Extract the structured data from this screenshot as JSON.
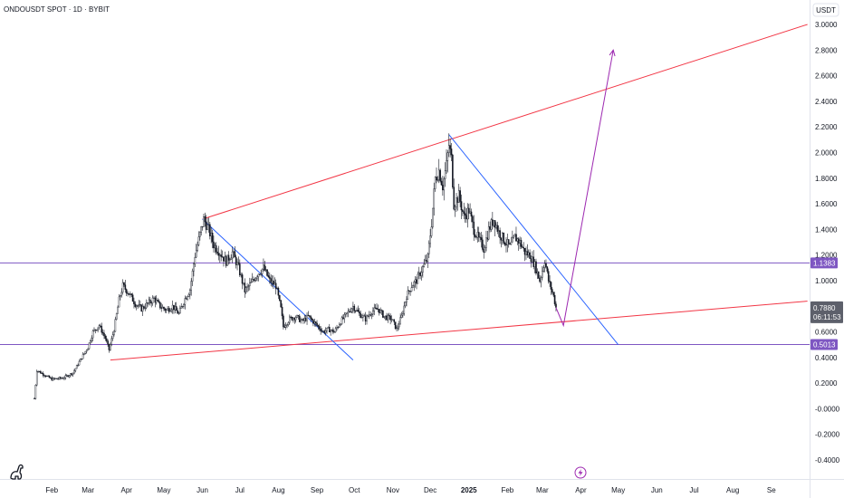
{
  "header": {
    "title": "ONDOUSDT SPOT · 1D · BYBIT"
  },
  "axis": {
    "unit": "USDT"
  },
  "chart_data": {
    "type": "line",
    "title": "ONDOUSDT SPOT · 1D · BYBIT",
    "ylabel": "USDT",
    "ylim": [
      -0.46,
      3.1
    ],
    "xlim": [
      "2024-01-18",
      "2025-10-01"
    ],
    "y_ticks": [
      {
        "value": 3.0,
        "label": "3.0000"
      },
      {
        "value": 2.8,
        "label": "2.8000"
      },
      {
        "value": 2.6,
        "label": "2.6000"
      },
      {
        "value": 2.4,
        "label": "2.4000"
      },
      {
        "value": 2.2,
        "label": "2.2000"
      },
      {
        "value": 2.0,
        "label": "2.0000"
      },
      {
        "value": 1.8,
        "label": "1.8000"
      },
      {
        "value": 1.6,
        "label": "1.6000"
      },
      {
        "value": 1.4,
        "label": "1.4000"
      },
      {
        "value": 1.2,
        "label": "1.2000"
      },
      {
        "value": 1.0,
        "label": "1.0000"
      },
      {
        "value": 0.8,
        "label": "0.8000"
      },
      {
        "value": 0.6,
        "label": "0.6000"
      },
      {
        "value": 0.4,
        "label": "0.4000"
      },
      {
        "value": 0.2,
        "label": "0.2000"
      },
      {
        "value": 0.0,
        "label": "-0.0000"
      },
      {
        "value": -0.2,
        "label": "-0.2000"
      },
      {
        "value": -0.4,
        "label": "-0.4000"
      }
    ],
    "x_ticks": [
      {
        "date": "2024-02-01",
        "label": "Feb"
      },
      {
        "date": "2024-03-01",
        "label": "Mar"
      },
      {
        "date": "2024-04-01",
        "label": "Apr"
      },
      {
        "date": "2024-05-01",
        "label": "May"
      },
      {
        "date": "2024-06-01",
        "label": "Jun"
      },
      {
        "date": "2024-07-01",
        "label": "Jul"
      },
      {
        "date": "2024-08-01",
        "label": "Aug"
      },
      {
        "date": "2024-09-01",
        "label": "Sep"
      },
      {
        "date": "2024-10-01",
        "label": "Oct"
      },
      {
        "date": "2024-11-01",
        "label": "Nov"
      },
      {
        "date": "2024-12-01",
        "label": "Dec"
      },
      {
        "date": "2025-01-01",
        "label": "2025"
      },
      {
        "date": "2025-02-01",
        "label": "Feb"
      },
      {
        "date": "2025-03-01",
        "label": "Mar"
      },
      {
        "date": "2025-04-01",
        "label": "Apr"
      },
      {
        "date": "2025-05-01",
        "label": "May"
      },
      {
        "date": "2025-06-01",
        "label": "Jun"
      },
      {
        "date": "2025-07-01",
        "label": "Jul"
      },
      {
        "date": "2025-08-01",
        "label": "Aug"
      },
      {
        "date": "2025-09-01",
        "label": "Se"
      }
    ],
    "series": [
      {
        "color": "#131722",
        "points": [
          [
            "2024-01-18",
            0.08
          ],
          [
            "2024-01-20",
            0.3
          ],
          [
            "2024-01-25",
            0.27
          ],
          [
            "2024-02-01",
            0.23
          ],
          [
            "2024-02-10",
            0.24
          ],
          [
            "2024-02-18",
            0.28
          ],
          [
            "2024-02-25",
            0.4
          ],
          [
            "2024-03-01",
            0.48
          ],
          [
            "2024-03-05",
            0.6
          ],
          [
            "2024-03-10",
            0.65
          ],
          [
            "2024-03-15",
            0.55
          ],
          [
            "2024-03-18",
            0.46
          ],
          [
            "2024-03-22",
            0.62
          ],
          [
            "2024-03-26",
            0.85
          ],
          [
            "2024-03-29",
            0.96
          ],
          [
            "2024-04-03",
            0.9
          ],
          [
            "2024-04-08",
            0.82
          ],
          [
            "2024-04-13",
            0.78
          ],
          [
            "2024-04-18",
            0.82
          ],
          [
            "2024-04-23",
            0.86
          ],
          [
            "2024-04-28",
            0.8
          ],
          [
            "2024-05-03",
            0.77
          ],
          [
            "2024-05-08",
            0.8
          ],
          [
            "2024-05-13",
            0.74
          ],
          [
            "2024-05-18",
            0.86
          ],
          [
            "2024-05-22",
            0.93
          ],
          [
            "2024-05-26",
            1.2
          ],
          [
            "2024-05-30",
            1.36
          ],
          [
            "2024-06-02",
            1.48
          ],
          [
            "2024-06-06",
            1.4
          ],
          [
            "2024-06-10",
            1.28
          ],
          [
            "2024-06-15",
            1.22
          ],
          [
            "2024-06-20",
            1.15
          ],
          [
            "2024-06-25",
            1.22
          ],
          [
            "2024-06-30",
            1.1
          ],
          [
            "2024-07-05",
            0.92
          ],
          [
            "2024-07-10",
            0.98
          ],
          [
            "2024-07-15",
            1.05
          ],
          [
            "2024-07-20",
            1.1
          ],
          [
            "2024-07-25",
            1.0
          ],
          [
            "2024-07-30",
            0.96
          ],
          [
            "2024-08-03",
            0.78
          ],
          [
            "2024-08-05",
            0.64
          ],
          [
            "2024-08-10",
            0.7
          ],
          [
            "2024-08-15",
            0.72
          ],
          [
            "2024-08-20",
            0.68
          ],
          [
            "2024-08-25",
            0.72
          ],
          [
            "2024-08-31",
            0.66
          ],
          [
            "2024-09-06",
            0.6
          ],
          [
            "2024-09-10",
            0.62
          ],
          [
            "2024-09-15",
            0.6
          ],
          [
            "2024-09-20",
            0.68
          ],
          [
            "2024-09-25",
            0.74
          ],
          [
            "2024-09-30",
            0.8
          ],
          [
            "2024-10-05",
            0.74
          ],
          [
            "2024-10-10",
            0.7
          ],
          [
            "2024-10-15",
            0.76
          ],
          [
            "2024-10-20",
            0.78
          ],
          [
            "2024-10-25",
            0.72
          ],
          [
            "2024-10-31",
            0.7
          ],
          [
            "2024-11-04",
            0.62
          ],
          [
            "2024-11-08",
            0.72
          ],
          [
            "2024-11-12",
            0.88
          ],
          [
            "2024-11-16",
            0.96
          ],
          [
            "2024-11-20",
            1.0
          ],
          [
            "2024-11-25",
            1.1
          ],
          [
            "2024-11-29",
            1.18
          ],
          [
            "2024-12-02",
            1.45
          ],
          [
            "2024-12-05",
            1.8
          ],
          [
            "2024-12-08",
            1.86
          ],
          [
            "2024-12-11",
            1.74
          ],
          [
            "2024-12-14",
            1.9
          ],
          [
            "2024-12-16",
            2.06
          ],
          [
            "2024-12-18",
            1.95
          ],
          [
            "2024-12-20",
            1.6
          ],
          [
            "2024-12-24",
            1.66
          ],
          [
            "2024-12-28",
            1.5
          ],
          [
            "2025-01-01",
            1.55
          ],
          [
            "2025-01-05",
            1.4
          ],
          [
            "2025-01-09",
            1.32
          ],
          [
            "2025-01-13",
            1.25
          ],
          [
            "2025-01-17",
            1.4
          ],
          [
            "2025-01-21",
            1.48
          ],
          [
            "2025-01-25",
            1.38
          ],
          [
            "2025-01-29",
            1.32
          ],
          [
            "2025-02-03",
            1.26
          ],
          [
            "2025-02-07",
            1.34
          ],
          [
            "2025-02-11",
            1.3
          ],
          [
            "2025-02-15",
            1.22
          ],
          [
            "2025-02-19",
            1.2
          ],
          [
            "2025-02-23",
            1.12
          ],
          [
            "2025-02-27",
            1.0
          ],
          [
            "2025-03-03",
            1.16
          ],
          [
            "2025-03-06",
            1.0
          ],
          [
            "2025-03-10",
            0.88
          ],
          [
            "2025-03-12",
            0.79
          ]
        ]
      }
    ],
    "drawings": {
      "horizontal_levels": [
        {
          "value": 1.1383,
          "label": "1.1383",
          "color": "#7e57c2"
        },
        {
          "value": 0.5013,
          "label": "0.5013",
          "color": "#7e57c2"
        }
      ],
      "current_price": {
        "value": 0.788,
        "label": "0.7880",
        "countdown": "06:11:53",
        "color": "#5d606b"
      },
      "trendlines": [
        {
          "color": "#f23645",
          "from": [
            "2024-06-01",
            1.48
          ],
          "to": [
            "2025-09-30",
            3.0
          ]
        },
        {
          "color": "#f23645",
          "from": [
            "2024-03-19",
            0.38
          ],
          "to": [
            "2025-09-30",
            0.84
          ]
        },
        {
          "color": "#2962ff",
          "from": [
            "2024-06-01",
            1.48
          ],
          "to": [
            "2024-09-30",
            0.38
          ]
        },
        {
          "color": "#2962ff",
          "from": [
            "2024-12-16",
            2.14
          ],
          "to": [
            "2025-05-01",
            0.5
          ]
        }
      ],
      "projection": {
        "color": "#9c27b0",
        "points": [
          [
            "2025-03-12",
            0.79
          ],
          [
            "2025-03-18",
            0.65
          ],
          [
            "2025-04-27",
            2.8
          ]
        ]
      }
    }
  },
  "footer": {
    "lightning_icon": "lightning-icon",
    "logo_icon": "dino-logo-icon"
  }
}
